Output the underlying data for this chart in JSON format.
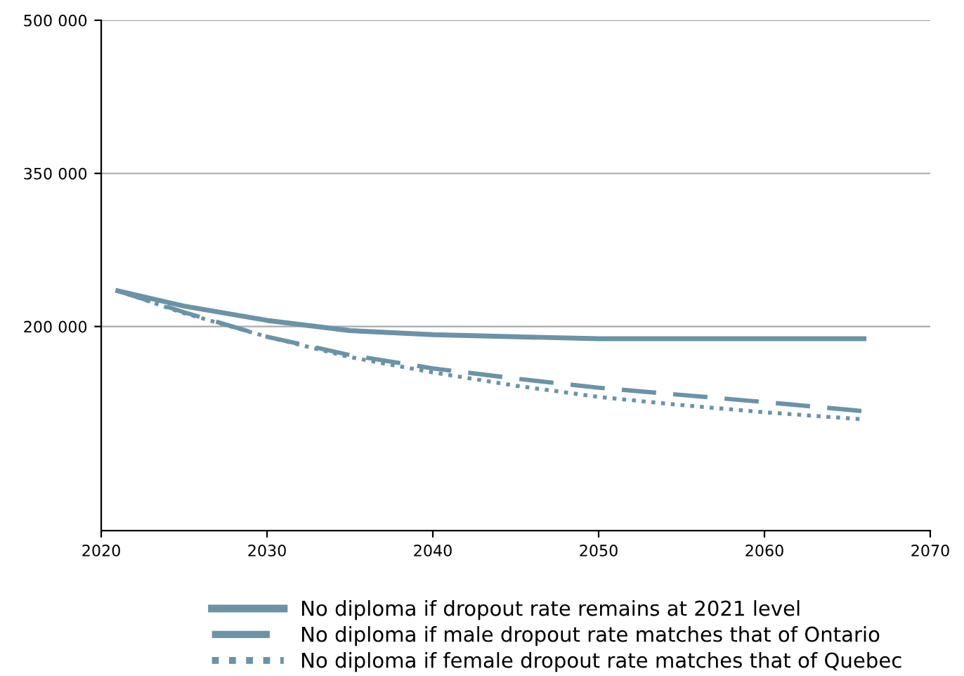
{
  "chart_data": {
    "type": "line",
    "x": [
      2021,
      2025,
      2030,
      2035,
      2040,
      2045,
      2050,
      2055,
      2060,
      2066
    ],
    "series": [
      {
        "name": "No diploma if dropout rate remains at 2021 level",
        "color": "#6b93a8",
        "line_style": "solid",
        "values": [
          235000,
          220000,
          206000,
          196000,
          192000,
          190000,
          188000,
          188000,
          188000,
          188000
        ]
      },
      {
        "name": "No diploma if male dropout rate matches that of Ontario",
        "color": "#6b93a8",
        "line_style": "dashed",
        "values": [
          235000,
          214000,
          190000,
          172000,
          159000,
          149000,
          140000,
          133000,
          126000,
          117000
        ]
      },
      {
        "name": "No diploma if female dropout rate matches that of Quebec",
        "color": "#6b93a8",
        "line_style": "dotted",
        "values": [
          235000,
          213000,
          190000,
          170000,
          155000,
          142000,
          131000,
          123000,
          116000,
          109000
        ]
      }
    ],
    "xlim": [
      2020,
      2070
    ],
    "xticks": [
      2020,
      2030,
      2040,
      2050,
      2060,
      2070
    ],
    "ylim": [
      0,
      500000
    ],
    "yticks": [
      {
        "value": 200000,
        "label": "200 000"
      },
      {
        "value": 350000,
        "label": "350 000"
      },
      {
        "value": 500000,
        "label": "500 000"
      }
    ],
    "grid": "y",
    "legend": "bottom"
  }
}
